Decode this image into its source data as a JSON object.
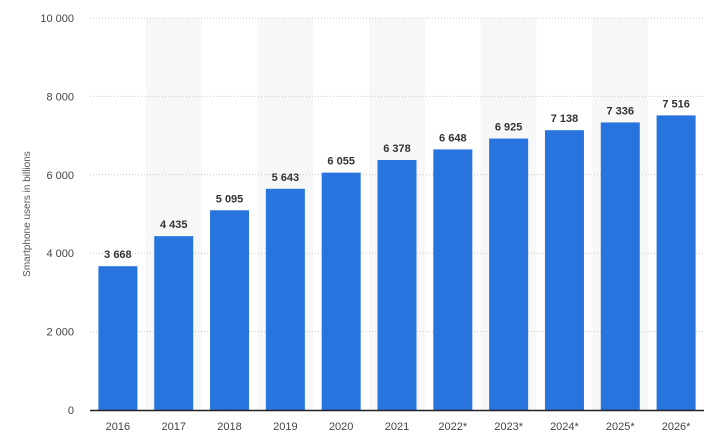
{
  "chart_data": {
    "type": "bar",
    "categories": [
      "2016",
      "2017",
      "2018",
      "2019",
      "2020",
      "2021",
      "2022*",
      "2023*",
      "2024*",
      "2025*",
      "2026*"
    ],
    "values": [
      3668,
      4435,
      5095,
      5643,
      6055,
      6378,
      6648,
      6925,
      7138,
      7336,
      7516
    ],
    "value_labels": [
      "3 668",
      "4 435",
      "5 095",
      "5 643",
      "6 055",
      "6 378",
      "6 648",
      "6 925",
      "7 138",
      "7 336",
      "7 516"
    ],
    "title": "",
    "xlabel": "",
    "ylabel": "Smartphone users in billions",
    "ylim": [
      0,
      10000
    ],
    "yticks": [
      0,
      2000,
      4000,
      6000,
      8000,
      10000
    ],
    "ytick_labels": [
      "0",
      "2 000",
      "4 000",
      "6 000",
      "8 000",
      "10 000"
    ],
    "grid": true,
    "legend": "none",
    "colors": {
      "bar": "#2874de",
      "band": "#f7f7f7",
      "grid": "#c9c9c9",
      "axis": "#222222"
    }
  }
}
